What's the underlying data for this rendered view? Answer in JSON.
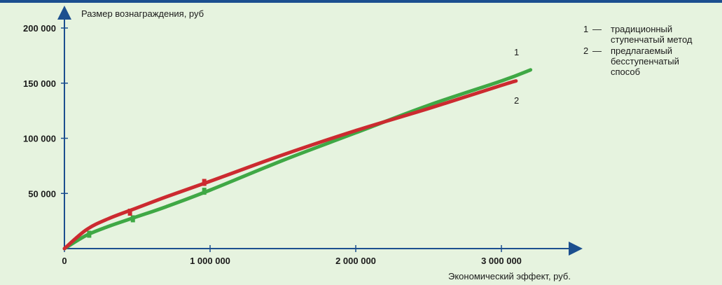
{
  "chart_data": {
    "type": "line",
    "title": "",
    "ylabel": "Размер вознаграждения, руб",
    "xlabel": "Экономический эффект, руб.",
    "xlim": [
      0,
      3500000
    ],
    "ylim": [
      0,
      200000
    ],
    "x_ticks": [
      {
        "value": 0,
        "label": "0"
      },
      {
        "value": 1000000,
        "label": "1 000 000"
      },
      {
        "value": 2000000,
        "label": "2 000 000"
      },
      {
        "value": 3000000,
        "label": "3 000 000"
      }
    ],
    "y_ticks": [
      {
        "value": 50000,
        "label": "50 000"
      },
      {
        "value": 100000,
        "label": "100 000"
      },
      {
        "value": 150000,
        "label": "150 000"
      },
      {
        "value": 200000,
        "label": "200 000"
      }
    ],
    "grid": false,
    "legend_position": "top-right",
    "legend": [
      {
        "key": "1",
        "dash": "—",
        "text_lines": [
          "традиционный",
          "ступенчатый метод"
        ]
      },
      {
        "key": "2",
        "dash": "—",
        "text_lines": [
          "предлагаемый",
          "бесступенчатый",
          "способ"
        ]
      }
    ],
    "series": [
      {
        "label": "1",
        "color": "#3fa845",
        "points": [
          [
            0,
            0
          ],
          [
            150000,
            12000
          ],
          [
            300000,
            20000
          ],
          [
            500000,
            29000
          ],
          [
            700000,
            38000
          ],
          [
            1000000,
            53000
          ],
          [
            1500000,
            80000
          ],
          [
            2000000,
            105000
          ],
          [
            2500000,
            130000
          ],
          [
            3000000,
            152000
          ],
          [
            3200000,
            162000
          ]
        ],
        "step_marks": [
          [
            170000,
            13000
          ],
          [
            470000,
            27000
          ],
          [
            960000,
            52000
          ]
        ]
      },
      {
        "label": "2",
        "color": "#cc2a30",
        "points": [
          [
            0,
            0
          ],
          [
            150000,
            17000
          ],
          [
            300000,
            27000
          ],
          [
            500000,
            37000
          ],
          [
            700000,
            47000
          ],
          [
            1000000,
            61000
          ],
          [
            1500000,
            85000
          ],
          [
            2000000,
            107000
          ],
          [
            2500000,
            127000
          ],
          [
            3000000,
            148000
          ],
          [
            3100000,
            152000
          ]
        ],
        "step_marks": [
          [
            450000,
            33000
          ],
          [
            960000,
            60000
          ]
        ]
      }
    ]
  }
}
